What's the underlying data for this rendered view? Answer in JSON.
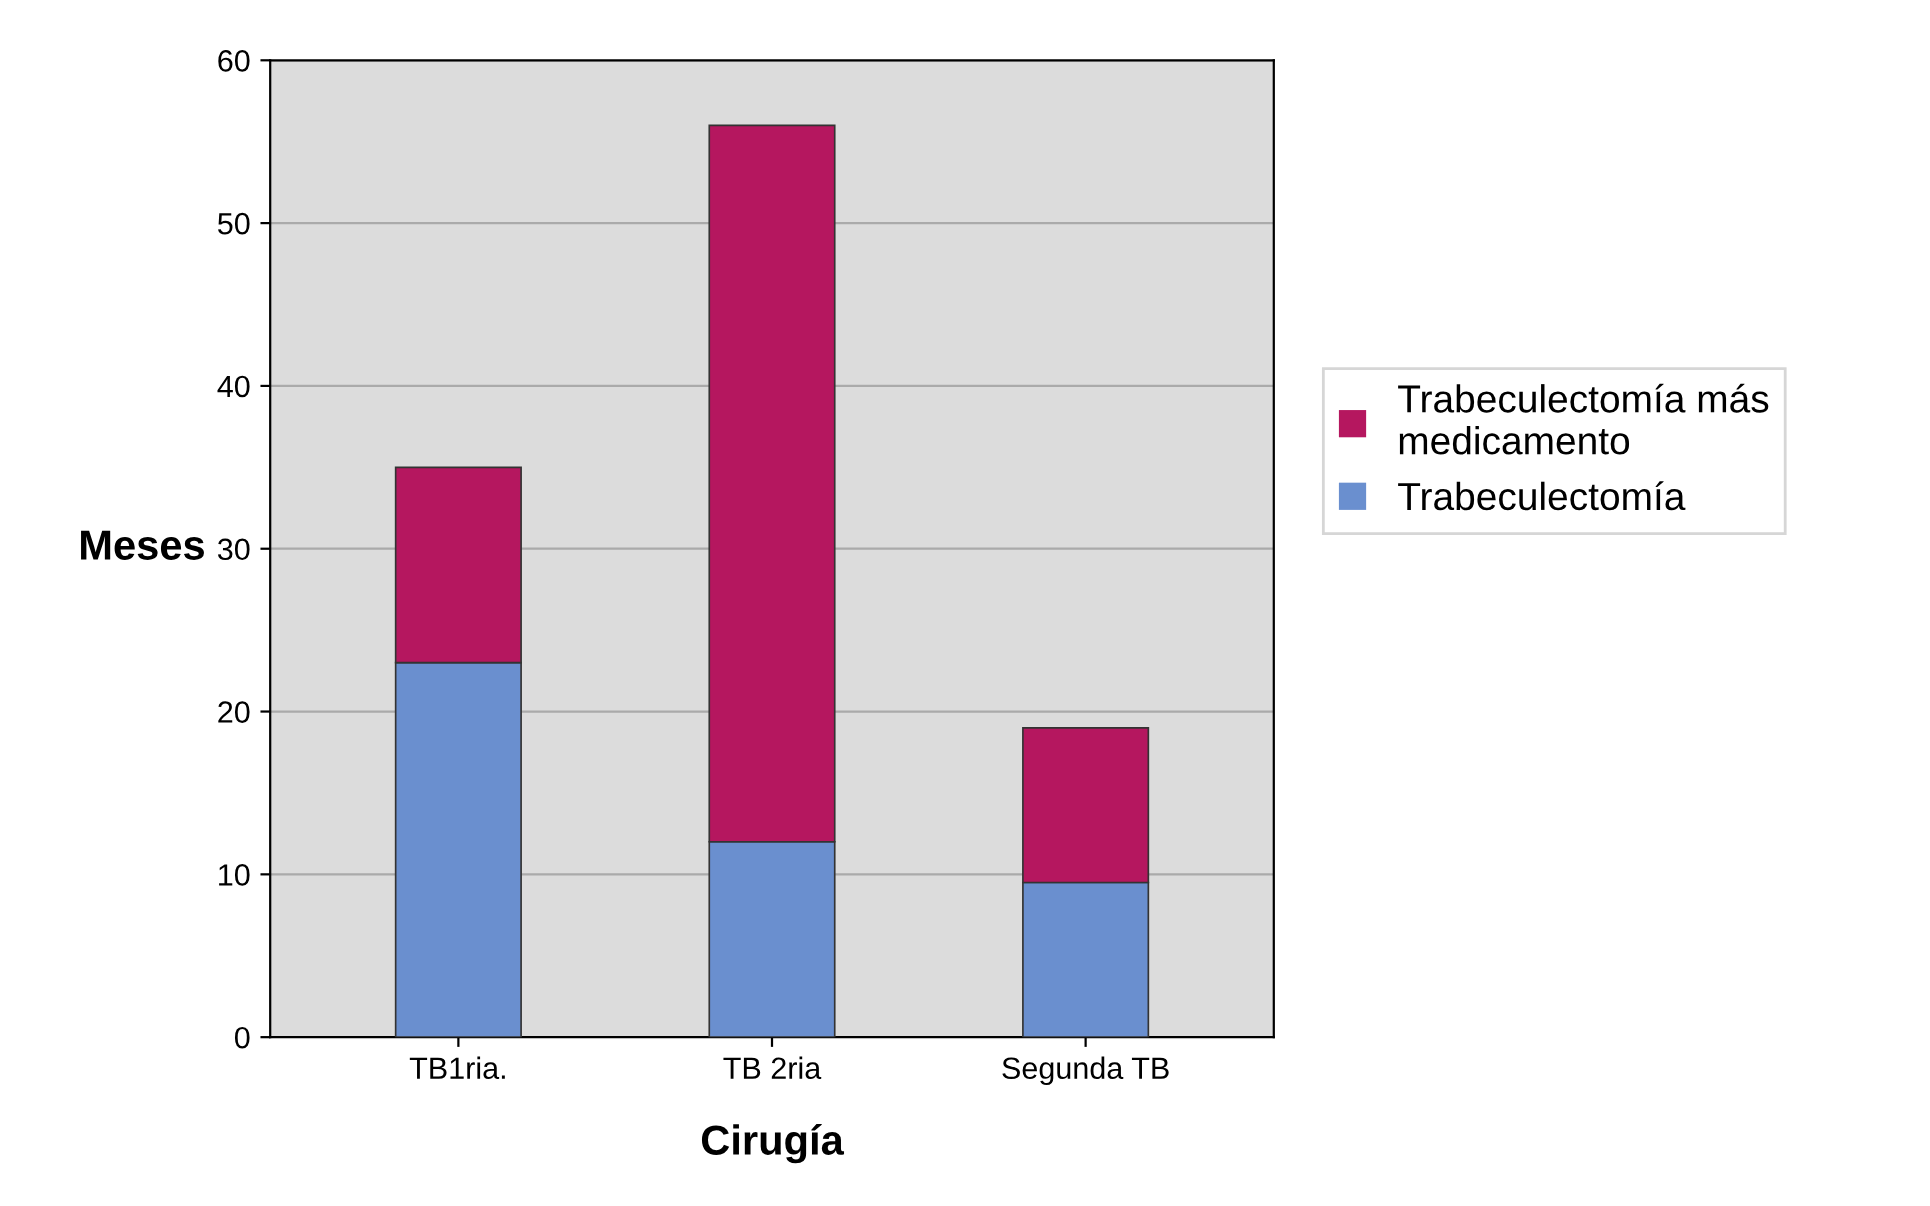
{
  "chart_data": {
    "type": "bar",
    "stacked": true,
    "xlabel": "Cirugía",
    "ylabel": "Meses",
    "categories": [
      "TB1ria.",
      "TB 2ria",
      "Segunda TB"
    ],
    "series": [
      {
        "name": "Trabeculectomía",
        "color": "#6a8fcf",
        "values": [
          23,
          12,
          9.5
        ]
      },
      {
        "name": "Trabeculectomía más\nmedicamento",
        "color": "#b5175f",
        "values": [
          12,
          44,
          9.5
        ]
      }
    ],
    "ylim": [
      0,
      60
    ],
    "yticks": [
      0,
      10,
      20,
      30,
      40,
      50,
      60
    ],
    "grid": "y",
    "legend": "right"
  }
}
